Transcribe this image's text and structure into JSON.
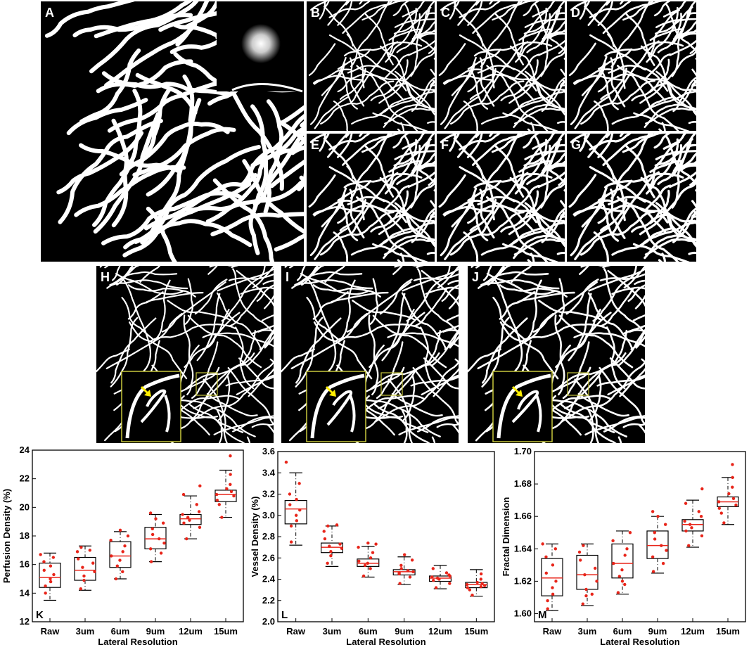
{
  "panels": [
    {
      "id": "A",
      "label": "A"
    },
    {
      "id": "B",
      "label": "B"
    },
    {
      "id": "C",
      "label": "C"
    },
    {
      "id": "D",
      "label": "D"
    },
    {
      "id": "E",
      "label": "E"
    },
    {
      "id": "F",
      "label": "F"
    },
    {
      "id": "G",
      "label": "G"
    },
    {
      "id": "H",
      "label": "H"
    },
    {
      "id": "I",
      "label": "I"
    },
    {
      "id": "J",
      "label": "J"
    }
  ],
  "colors": {
    "vessel": "#ffffff",
    "background": "#000000",
    "zoom_box": "#c8c83c",
    "arrow": "#ffee00",
    "median": "#e8251a",
    "points": "#e8251a"
  },
  "chart_data": [
    {
      "id": "K",
      "label": "K",
      "type": "box",
      "xlabel": "Lateral Resolution",
      "ylabel": "Perfusion Density (%)",
      "categories": [
        "Raw",
        "3um",
        "6um",
        "9um",
        "12um",
        "15um"
      ],
      "ylim": [
        12,
        24
      ],
      "yticks": [
        12,
        14,
        16,
        18,
        20,
        22,
        24
      ],
      "boxes": [
        {
          "whisker_low": 13.5,
          "q1": 14.4,
          "median": 15.1,
          "q3": 16.1,
          "whisker_high": 16.8
        },
        {
          "whisker_low": 14.2,
          "q1": 14.9,
          "median": 15.6,
          "q3": 16.5,
          "whisker_high": 17.3
        },
        {
          "whisker_low": 15.0,
          "q1": 15.8,
          "median": 16.6,
          "q3": 17.6,
          "whisker_high": 18.3
        },
        {
          "whisker_low": 16.2,
          "q1": 17.1,
          "median": 17.8,
          "q3": 18.6,
          "whisker_high": 19.5
        },
        {
          "whisker_low": 17.8,
          "q1": 18.8,
          "median": 19.2,
          "q3": 19.5,
          "whisker_high": 20.8
        },
        {
          "whisker_low": 19.3,
          "q1": 20.4,
          "median": 20.9,
          "q3": 21.2,
          "whisker_high": 22.6
        }
      ],
      "points": [
        [
          14.0,
          14.5,
          14.8,
          15.0,
          15.3,
          15.6,
          15.9,
          16.2,
          16.5,
          16.7
        ],
        [
          14.3,
          14.9,
          15.2,
          15.5,
          15.8,
          16.1,
          16.4,
          16.9,
          17.2,
          17.0
        ],
        [
          15.0,
          15.5,
          15.9,
          16.3,
          16.6,
          16.9,
          17.3,
          17.7,
          18.0,
          18.4
        ],
        [
          16.2,
          16.8,
          17.1,
          17.5,
          17.8,
          18.1,
          18.5,
          18.9,
          19.2,
          19.6
        ],
        [
          17.8,
          18.6,
          18.9,
          19.1,
          19.3,
          19.5,
          19.7,
          20.2,
          20.9,
          21.5
        ],
        [
          19.3,
          20.2,
          20.5,
          20.8,
          20.9,
          21.1,
          21.3,
          21.6,
          22.3,
          23.6
        ]
      ]
    },
    {
      "id": "L",
      "label": "L",
      "type": "box",
      "xlabel": "Lateral Resolution",
      "ylabel": "Vessel Density (%)",
      "categories": [
        "Raw",
        "3um",
        "6um",
        "9um",
        "12um",
        "15um"
      ],
      "ylim": [
        2.0,
        3.6
      ],
      "yticks": [
        2.0,
        2.2,
        2.4,
        2.6,
        2.8,
        3.0,
        3.2,
        3.4,
        3.6
      ],
      "boxes": [
        {
          "whisker_low": 2.72,
          "q1": 2.92,
          "median": 3.06,
          "q3": 3.14,
          "whisker_high": 3.4
        },
        {
          "whisker_low": 2.52,
          "q1": 2.65,
          "median": 2.7,
          "q3": 2.74,
          "whisker_high": 2.9
        },
        {
          "whisker_low": 2.42,
          "q1": 2.52,
          "median": 2.55,
          "q3": 2.59,
          "whisker_high": 2.71
        },
        {
          "whisker_low": 2.35,
          "q1": 2.44,
          "median": 2.47,
          "q3": 2.49,
          "whisker_high": 2.61
        },
        {
          "whisker_low": 2.31,
          "q1": 2.38,
          "median": 2.41,
          "q3": 2.43,
          "whisker_high": 2.53
        },
        {
          "whisker_low": 2.24,
          "q1": 2.32,
          "median": 2.35,
          "q3": 2.37,
          "whisker_high": 2.49
        }
      ],
      "points": [
        [
          2.75,
          2.9,
          2.95,
          3.0,
          3.05,
          3.1,
          3.15,
          3.2,
          3.3,
          3.5
        ],
        [
          2.55,
          2.62,
          2.66,
          2.69,
          2.71,
          2.73,
          2.78,
          2.85,
          2.9,
          2.91
        ],
        [
          2.43,
          2.5,
          2.53,
          2.55,
          2.57,
          2.6,
          2.65,
          2.7,
          2.73,
          2.74
        ],
        [
          2.36,
          2.42,
          2.45,
          2.47,
          2.48,
          2.5,
          2.53,
          2.58,
          2.63,
          2.46
        ],
        [
          2.32,
          2.36,
          2.39,
          2.4,
          2.41,
          2.42,
          2.44,
          2.46,
          2.5,
          2.43
        ],
        [
          2.25,
          2.3,
          2.32,
          2.34,
          2.35,
          2.36,
          2.37,
          2.4,
          2.45,
          2.33
        ]
      ]
    },
    {
      "id": "M",
      "label": "M",
      "type": "box",
      "xlabel": "Lateral Resolution",
      "ylabel": "Fractal Dimension",
      "categories": [
        "Raw",
        "3um",
        "6um",
        "9um",
        "12um",
        "15um"
      ],
      "ylim": [
        1.595,
        1.7
      ],
      "yticks": [
        1.6,
        1.62,
        1.64,
        1.66,
        1.68,
        1.7
      ],
      "boxes": [
        {
          "whisker_low": 1.602,
          "q1": 1.611,
          "median": 1.622,
          "q3": 1.634,
          "whisker_high": 1.643
        },
        {
          "whisker_low": 1.605,
          "q1": 1.615,
          "median": 1.624,
          "q3": 1.636,
          "whisker_high": 1.643
        },
        {
          "whisker_low": 1.612,
          "q1": 1.622,
          "median": 1.631,
          "q3": 1.643,
          "whisker_high": 1.651
        },
        {
          "whisker_low": 1.625,
          "q1": 1.634,
          "median": 1.642,
          "q3": 1.651,
          "whisker_high": 1.66
        },
        {
          "whisker_low": 1.641,
          "q1": 1.651,
          "median": 1.655,
          "q3": 1.658,
          "whisker_high": 1.67
        },
        {
          "whisker_low": 1.655,
          "q1": 1.666,
          "median": 1.669,
          "q3": 1.672,
          "whisker_high": 1.684
        }
      ],
      "points": [
        [
          1.603,
          1.608,
          1.612,
          1.616,
          1.62,
          1.625,
          1.63,
          1.635,
          1.64,
          1.643
        ],
        [
          1.606,
          1.611,
          1.615,
          1.62,
          1.624,
          1.628,
          1.633,
          1.638,
          1.642,
          1.612
        ],
        [
          1.613,
          1.618,
          1.623,
          1.627,
          1.631,
          1.636,
          1.64,
          1.645,
          1.65,
          1.62
        ],
        [
          1.626,
          1.631,
          1.635,
          1.639,
          1.642,
          1.646,
          1.65,
          1.655,
          1.66,
          1.663
        ],
        [
          1.642,
          1.648,
          1.651,
          1.653,
          1.655,
          1.657,
          1.66,
          1.663,
          1.668,
          1.677
        ],
        [
          1.656,
          1.662,
          1.665,
          1.667,
          1.669,
          1.671,
          1.674,
          1.678,
          1.684,
          1.692
        ]
      ]
    }
  ]
}
